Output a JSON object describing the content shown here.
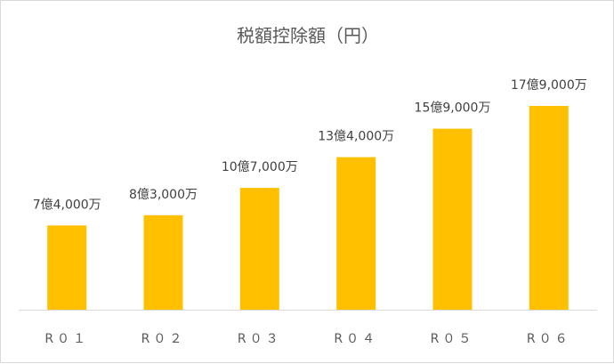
{
  "chart_data": {
    "type": "bar",
    "title": "税額控除額（円）",
    "xlabel": "",
    "ylabel": "",
    "categories": [
      "R０１",
      "R０２",
      "R０３",
      "R０４",
      "R０５",
      "R０６"
    ],
    "values": [
      740000000,
      830000000,
      1070000000,
      1340000000,
      1590000000,
      1790000000
    ],
    "data_labels": [
      "7億4,000万",
      "8億3,000万",
      "10億7,000万",
      "13億4,000万",
      "15億9,000万",
      "17億9,000万"
    ],
    "ylim": [
      0,
      2000000000
    ],
    "grid": false,
    "legend": "none",
    "bar_color": "#FFC000",
    "axis_color": "#d9d9d9"
  }
}
